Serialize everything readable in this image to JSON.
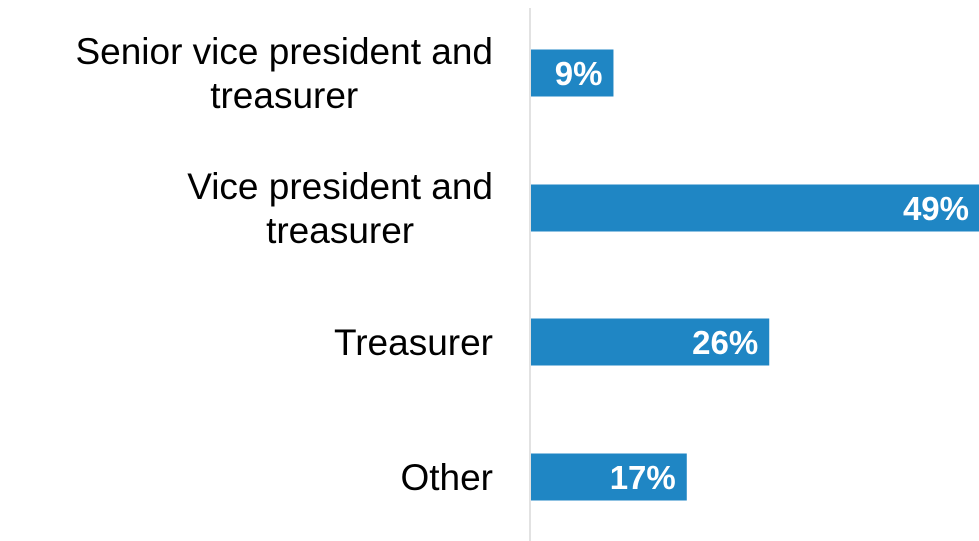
{
  "chart_data": {
    "type": "bar",
    "orientation": "horizontal",
    "categories": [
      [
        "Senior vice president and",
        "treasurer"
      ],
      [
        "Vice president and",
        "treasurer"
      ],
      [
        "Treasurer"
      ],
      [
        "Other"
      ]
    ],
    "values": [
      9,
      49,
      26,
      17
    ],
    "data_labels": [
      "9%",
      "49%",
      "26%",
      "17%"
    ],
    "unit": "%",
    "xlim": [
      0,
      49
    ],
    "grid": false,
    "legend": "none",
    "title": "",
    "xlabel": "",
    "ylabel": "",
    "colors": {
      "bar": "#1F86C4",
      "axis": "#D9D9D9",
      "label_text": "#000000",
      "value_text": "#FFFFFF"
    }
  }
}
